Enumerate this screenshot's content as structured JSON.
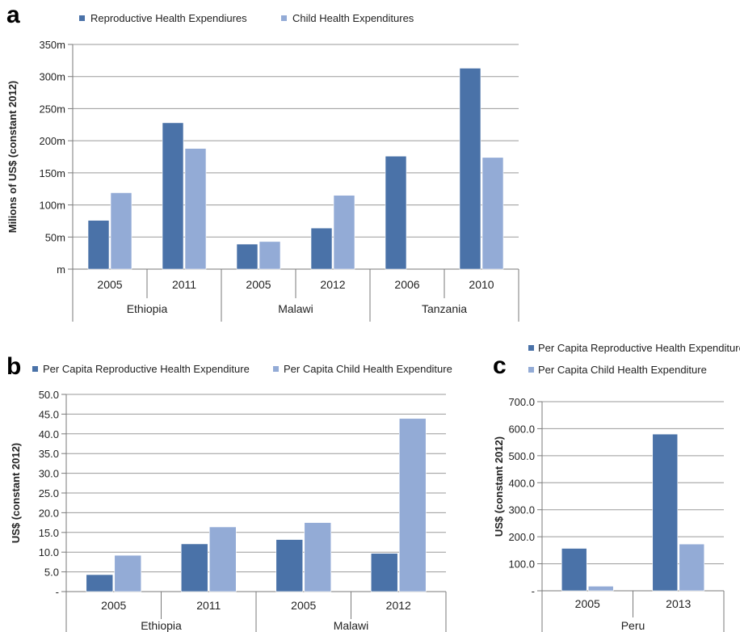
{
  "colors": {
    "series1": "#4a72a8",
    "series2": "#93abd6",
    "grid": "#9a9a9a",
    "axis": "#7a7a7a"
  },
  "chart_data": [
    {
      "panel": "a",
      "type": "bar",
      "ylabel": "Milions of US$ (constant 2012)",
      "yticks": [
        "m",
        "50m",
        "100m",
        "150m",
        "200m",
        "250m",
        "300m",
        "350m"
      ],
      "ylim": [
        0,
        350
      ],
      "grid": true,
      "legend_position": "top",
      "groups": [
        {
          "name": "Ethiopia",
          "categories": [
            "2005",
            "2011"
          ]
        },
        {
          "name": "Malawi",
          "categories": [
            "2005",
            "2012"
          ]
        },
        {
          "name": "Tanzania",
          "categories": [
            "2006",
            "2010"
          ]
        }
      ],
      "series": [
        {
          "name": "Reproductive Health Expendiures",
          "values": [
            76,
            228,
            39,
            64,
            176,
            313
          ]
        },
        {
          "name": "Child Health Expenditures",
          "values": [
            119,
            188,
            43,
            115,
            0,
            174
          ]
        }
      ]
    },
    {
      "panel": "b",
      "type": "bar",
      "ylabel": "US$ (constant 2012)",
      "yticks": [
        "-",
        "5.0",
        "10.0",
        "15.0",
        "20.0",
        "25.0",
        "30.0",
        "35.0",
        "40.0",
        "45.0",
        "50.0"
      ],
      "ylim": [
        0,
        50
      ],
      "grid": true,
      "legend_position": "top",
      "groups": [
        {
          "name": "Ethiopia",
          "categories": [
            "2005",
            "2011"
          ]
        },
        {
          "name": "Malawi",
          "categories": [
            "2005",
            "2012"
          ]
        }
      ],
      "series": [
        {
          "name": "Per Capita Reproductive Health Expenditure",
          "values": [
            4.3,
            12.1,
            13.2,
            9.7
          ]
        },
        {
          "name": "Per Capita Child Health Expenditure",
          "values": [
            9.2,
            16.4,
            17.5,
            43.9
          ]
        }
      ]
    },
    {
      "panel": "c",
      "type": "bar",
      "ylabel": "US$ (constant 2012)",
      "yticks": [
        "-",
        "100.0",
        "200.0",
        "300.0",
        "400.0",
        "500.0",
        "600.0",
        "700.0"
      ],
      "ylim": [
        0,
        700
      ],
      "grid": true,
      "legend_position": "top",
      "groups": [
        {
          "name": "Peru",
          "categories": [
            "2005",
            "2013"
          ]
        }
      ],
      "series": [
        {
          "name": "Per Capita Reproductive Health Expenditure",
          "values": [
            157,
            580
          ]
        },
        {
          "name": "Per Capita Child Health Expenditure",
          "values": [
            17,
            173
          ]
        }
      ]
    }
  ]
}
